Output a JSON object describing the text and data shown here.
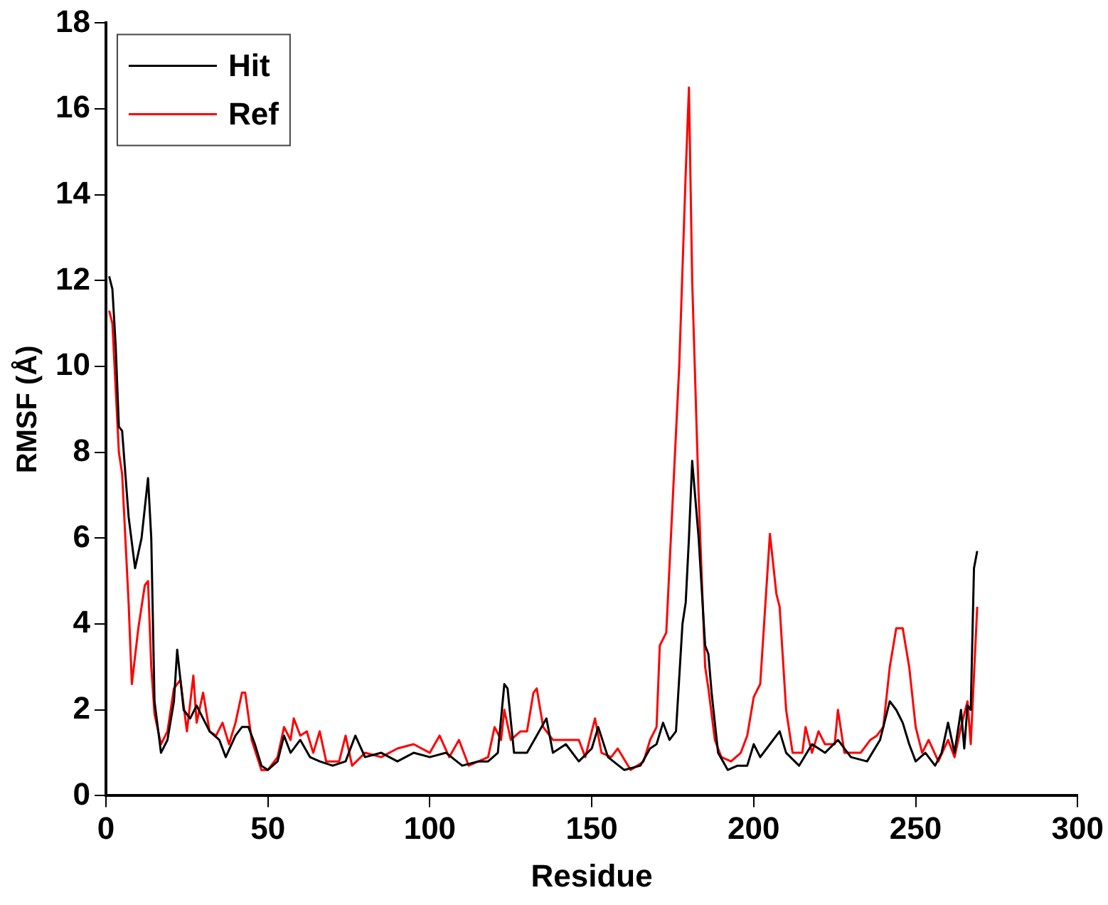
{
  "chart_data": {
    "type": "line",
    "xlabel": "Residue",
    "ylabel": "RMSF (Å)",
    "xlim": [
      0,
      300
    ],
    "xticks": [
      0,
      50,
      100,
      150,
      200,
      250,
      300
    ],
    "ylim": [
      0,
      18
    ],
    "yticks": [
      0,
      2,
      4,
      6,
      8,
      10,
      12,
      14,
      16,
      18
    ],
    "grid": false,
    "legend": "top left",
    "marker": "none",
    "line_style": "solid",
    "series": [
      {
        "name": "Hit",
        "color": "#000000",
        "x": [
          1,
          2,
          3,
          4,
          5,
          7,
          9,
          11,
          13,
          14,
          15,
          17,
          19,
          21,
          22,
          24,
          26,
          28,
          30,
          32,
          35,
          37,
          40,
          42,
          44,
          46,
          48,
          50,
          53,
          55,
          57,
          60,
          63,
          66,
          70,
          74,
          77,
          80,
          85,
          90,
          95,
          100,
          105,
          110,
          115,
          118,
          121,
          123,
          124,
          126,
          130,
          133,
          136,
          138,
          142,
          146,
          150,
          152,
          155,
          160,
          165,
          168,
          170,
          172,
          174,
          176,
          178,
          179,
          180,
          181,
          183,
          185,
          186,
          187,
          189,
          192,
          195,
          198,
          200,
          202,
          205,
          208,
          210,
          214,
          218,
          222,
          226,
          230,
          235,
          239,
          242,
          244,
          246,
          248,
          250,
          253,
          256,
          258,
          260,
          262,
          264,
          265,
          266,
          267,
          268,
          269
        ],
        "values": [
          12.1,
          11.8,
          10.5,
          8.6,
          8.5,
          6.5,
          5.3,
          6.0,
          7.4,
          6.0,
          2.2,
          1.0,
          1.3,
          2.2,
          3.4,
          2.0,
          1.8,
          2.1,
          1.8,
          1.5,
          1.3,
          0.9,
          1.4,
          1.6,
          1.6,
          1.2,
          0.7,
          0.6,
          0.8,
          1.4,
          1.0,
          1.3,
          0.9,
          0.8,
          0.7,
          0.8,
          1.4,
          0.9,
          1.0,
          0.8,
          1.0,
          0.9,
          1.0,
          0.7,
          0.8,
          0.8,
          1.0,
          2.6,
          2.5,
          1.0,
          1.0,
          1.4,
          1.8,
          1.0,
          1.2,
          0.8,
          1.1,
          1.6,
          0.9,
          0.6,
          0.7,
          1.1,
          1.2,
          1.7,
          1.3,
          1.5,
          4.0,
          4.5,
          6.0,
          7.8,
          6.0,
          3.5,
          3.3,
          2.4,
          1.0,
          0.6,
          0.7,
          0.7,
          1.2,
          0.9,
          1.2,
          1.5,
          1.0,
          0.7,
          1.2,
          1.0,
          1.3,
          0.9,
          0.8,
          1.3,
          2.2,
          2.0,
          1.7,
          1.2,
          0.8,
          1.0,
          0.7,
          1.0,
          1.7,
          1.0,
          2.0,
          1.1,
          2.1,
          2.0,
          5.3,
          5.7
        ]
      },
      {
        "name": "Ref",
        "color": "#ff0000",
        "x": [
          1,
          2,
          3,
          4,
          5,
          7,
          8,
          10,
          12,
          13,
          14,
          15,
          17,
          19,
          21,
          23,
          25,
          27,
          28,
          30,
          32,
          34,
          36,
          38,
          40,
          42,
          43,
          45,
          48,
          50,
          53,
          55,
          57,
          58,
          60,
          62,
          64,
          66,
          68,
          72,
          74,
          76,
          80,
          85,
          90,
          95,
          100,
          103,
          106,
          109,
          112,
          115,
          118,
          120,
          122,
          123,
          125,
          128,
          130,
          132,
          133,
          135,
          138,
          142,
          146,
          148,
          151,
          153,
          156,
          158,
          162,
          166,
          168,
          170,
          171,
          173,
          177,
          179,
          180,
          181,
          183,
          185,
          186,
          188,
          190,
          193,
          196,
          198,
          200,
          202,
          205,
          207,
          208,
          210,
          212,
          215,
          216,
          218,
          220,
          222,
          225,
          226,
          228,
          230,
          233,
          236,
          238,
          240,
          242,
          244,
          246,
          248,
          250,
          252,
          254,
          257,
          260,
          262,
          264,
          266,
          267,
          269
        ],
        "values": [
          11.3,
          11.0,
          9.5,
          8.0,
          7.5,
          4.5,
          2.6,
          3.9,
          4.9,
          5.0,
          3.0,
          1.9,
          1.2,
          1.5,
          2.5,
          2.7,
          1.5,
          2.8,
          1.7,
          2.4,
          1.5,
          1.4,
          1.7,
          1.2,
          1.7,
          2.4,
          2.4,
          1.3,
          0.6,
          0.6,
          0.9,
          1.6,
          1.3,
          1.8,
          1.4,
          1.5,
          1.0,
          1.5,
          0.8,
          0.8,
          1.4,
          0.7,
          1.0,
          0.9,
          1.1,
          1.2,
          1.0,
          1.4,
          0.9,
          1.3,
          0.7,
          0.8,
          0.9,
          1.6,
          1.3,
          2.0,
          1.3,
          1.5,
          1.5,
          2.4,
          2.5,
          1.6,
          1.3,
          1.3,
          1.3,
          0.9,
          1.8,
          1.0,
          0.9,
          1.1,
          0.6,
          0.8,
          1.3,
          1.6,
          3.5,
          3.8,
          10.0,
          14.5,
          16.5,
          12.0,
          7.0,
          3.0,
          2.5,
          1.3,
          0.9,
          0.8,
          1.0,
          1.4,
          2.3,
          2.6,
          6.1,
          4.7,
          4.4,
          2.0,
          1.0,
          1.0,
          1.6,
          1.0,
          1.5,
          1.2,
          1.2,
          2.0,
          1.0,
          1.0,
          1.0,
          1.3,
          1.4,
          1.6,
          3.0,
          3.9,
          3.9,
          3.0,
          1.6,
          1.0,
          1.3,
          0.8,
          1.3,
          0.9,
          1.6,
          2.2,
          1.2,
          4.4
        ]
      }
    ]
  }
}
